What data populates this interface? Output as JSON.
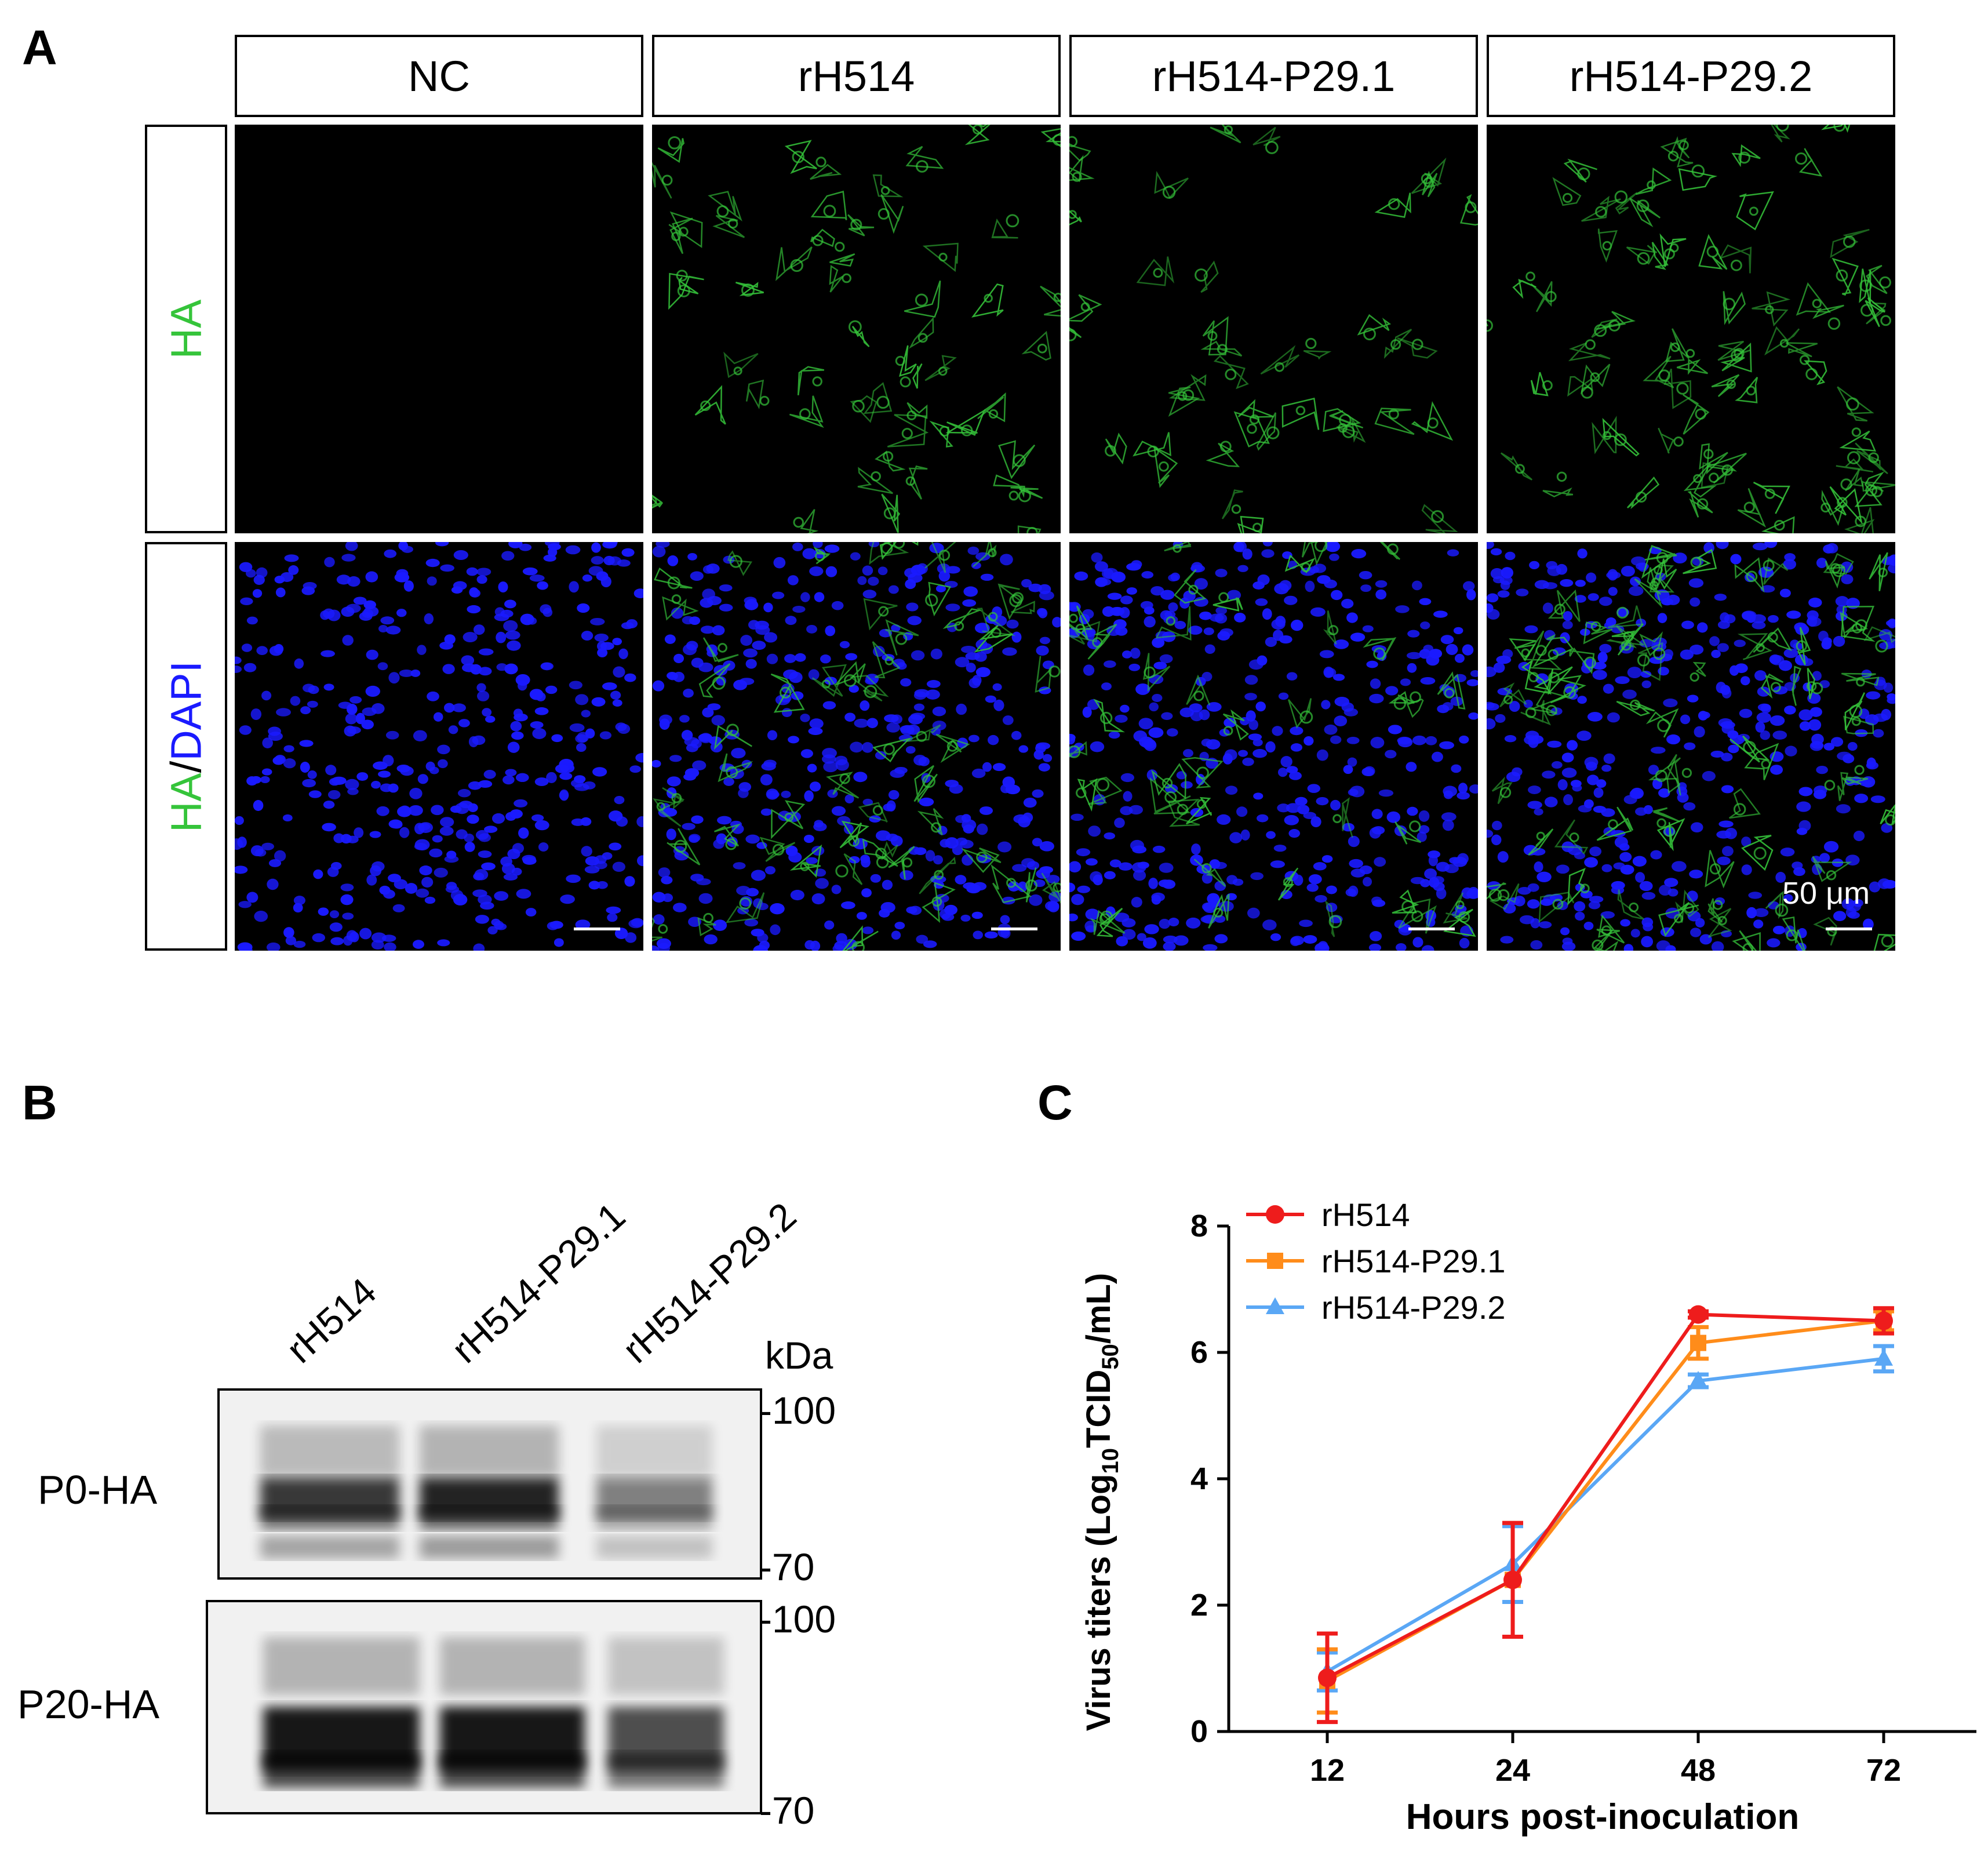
{
  "panel_a": {
    "letter": "A",
    "columns": [
      "NC",
      "rH514",
      "rH514-P29.1",
      "rH514-P29.2"
    ],
    "row_labels": {
      "row1": "HA",
      "row2_part1": "HA",
      "row2_sep": "/",
      "row2_part2": "DAPI"
    },
    "scale_bar_label": "50 μm",
    "colors": {
      "ha_green": "#35c43a",
      "dapi_blue": "#1a1aff",
      "background": "#000000"
    }
  },
  "panel_b": {
    "letter": "B",
    "lanes": [
      "rH514",
      "rH514-P29.1",
      "rH514-P29.2"
    ],
    "kda_label": "kDa",
    "markers": [
      "-100",
      "-70"
    ],
    "rows": [
      "P0-HA",
      "P20-HA"
    ]
  },
  "panel_c": {
    "letter": "C",
    "chart_data": {
      "type": "line",
      "xlabel": "Hours post-inoculation",
      "ylabel_prefix": "Virus titers (Log",
      "ylabel_sub1": "10",
      "ylabel_mid": "TCID",
      "ylabel_sub2": "50",
      "ylabel_suffix": "/mL)",
      "categories": [
        "12",
        "24",
        "48",
        "72"
      ],
      "ylim": [
        0,
        8
      ],
      "yticks": [
        "0",
        "2",
        "4",
        "6",
        "8"
      ],
      "legend_position": "top-left",
      "series": [
        {
          "name": "rH514",
          "color": "#ee1c1c",
          "marker": "circle",
          "values": [
            0.85,
            2.4,
            6.6,
            6.5
          ],
          "errors": [
            0.7,
            0.9,
            0.05,
            0.2
          ]
        },
        {
          "name": "rH514-P29.1",
          "color": "#ff8c1a",
          "marker": "square",
          "values": [
            0.8,
            2.4,
            6.15,
            6.5
          ],
          "errors": [
            0.5,
            0.9,
            0.25,
            0.15
          ]
        },
        {
          "name": "rH514-P29.2",
          "color": "#5aa7f5",
          "marker": "triangle",
          "values": [
            0.95,
            2.65,
            5.55,
            5.9
          ],
          "errors": [
            0.3,
            0.6,
            0.1,
            0.2
          ]
        }
      ]
    }
  }
}
